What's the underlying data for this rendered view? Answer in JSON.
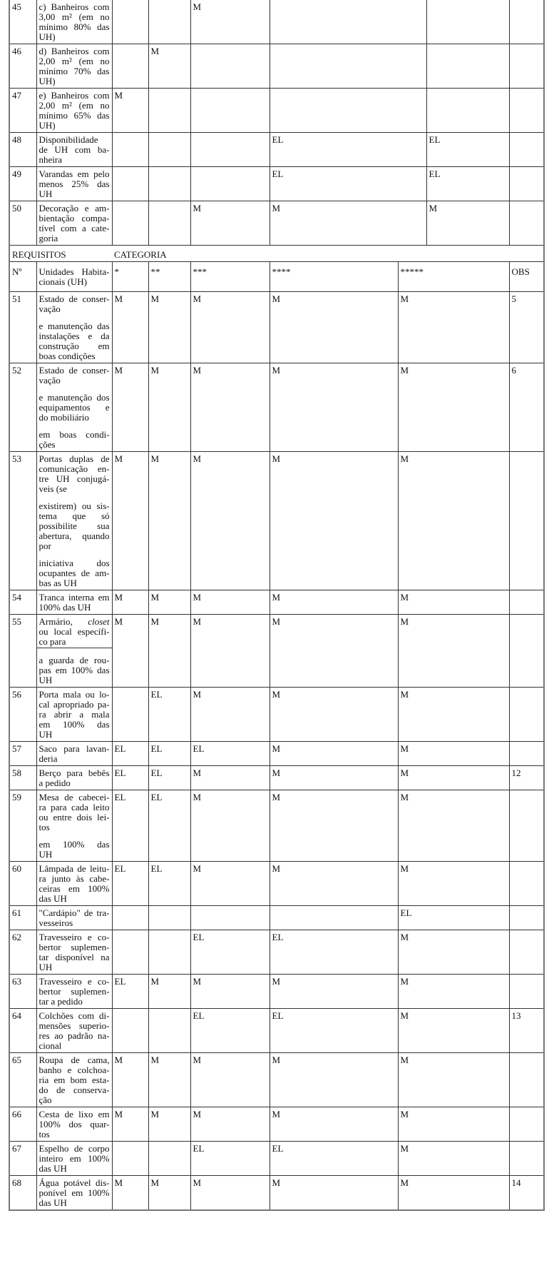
{
  "section1": {
    "rows": [
      {
        "no": "45",
        "desc": [
          [
            "c) Banheiros com",
            "3,00 m² (em no",
            "mínimo 80% das",
            "UH)"
          ]
        ],
        "cats": [
          "",
          "",
          "M",
          "",
          ""
        ],
        "obs": ""
      },
      {
        "no": "46",
        "desc": [
          [
            "d) Banheiros com",
            "2,00 m² (em no",
            "mínimo 70% das",
            "UH)"
          ]
        ],
        "cats": [
          "",
          "M",
          "",
          "",
          ""
        ],
        "obs": ""
      },
      {
        "no": "47",
        "desc": [
          [
            "e) Banheiros com",
            "2,00 m² (em no",
            "mínimo 65% das",
            "UH)"
          ]
        ],
        "cats": [
          "M",
          "",
          "",
          "",
          ""
        ],
        "obs": ""
      },
      {
        "no": "48",
        "desc": [
          [
            "Disponibilidade",
            "de UH com ba-",
            "nheira"
          ]
        ],
        "cats": [
          "",
          "",
          "",
          "EL",
          "EL"
        ],
        "obs": ""
      },
      {
        "no": "49",
        "desc": [
          [
            "Varandas em pelo",
            "menos 25% das",
            "UH"
          ]
        ],
        "cats": [
          "",
          "",
          "",
          "EL",
          "EL"
        ],
        "obs": ""
      },
      {
        "no": "50",
        "desc": [
          [
            "Decoração e am-",
            "bientação compa-",
            "tível com a cate-",
            "goria"
          ]
        ],
        "cats": [
          "",
          "",
          "M",
          "M",
          "M"
        ],
        "obs": ""
      }
    ]
  },
  "section_header": {
    "requisitos": "REQUISITOS",
    "categoria": "CATEGORIA",
    "no": "Nº",
    "desc": [
      "Unidades Habita-",
      "cionais (UH)"
    ],
    "cats": [
      "*",
      "**",
      "***",
      "****",
      "*****"
    ],
    "obs": "OBS"
  },
  "section2": {
    "rows": [
      {
        "no": "51",
        "desc": [
          [
            "Estado de conser-",
            "vação"
          ],
          [
            "e manutenção das",
            "instalações e da",
            "construção em",
            "boas condições"
          ]
        ],
        "cats": [
          "M",
          "M",
          "M",
          "M",
          "M"
        ],
        "obs": "5"
      },
      {
        "no": "52",
        "desc": [
          [
            "Estado de conser-",
            "vação"
          ],
          [
            "e manutenção dos",
            "equipamentos e",
            "do mobiliário"
          ],
          [
            "em boas condi-",
            "ções"
          ]
        ],
        "cats": [
          "M",
          "M",
          "M",
          "M",
          "M"
        ],
        "obs": "6"
      },
      {
        "no": "53",
        "desc": [
          [
            "Portas duplas de",
            "comunicação en-",
            "tre UH conjugá-",
            "veis (se"
          ],
          [
            "existirem) ou sis-",
            "tema que só",
            "possibilite sua",
            "abertura, quando",
            "por"
          ],
          [
            "iniciativa dos",
            "ocupantes de am-",
            "bas as UH"
          ]
        ],
        "cats": [
          "M",
          "M",
          "M",
          "M",
          "M"
        ],
        "obs": ""
      },
      {
        "no": "54",
        "desc": [
          [
            "Tranca interna em",
            "100% das UH"
          ]
        ],
        "cats": [
          "M",
          "M",
          "M",
          "M",
          "M"
        ],
        "obs": ""
      },
      {
        "no": "55",
        "desc": [
          [
            "Armário, closet",
            "ou local específi-",
            "co para"
          ],
          [
            "a guarda de rou-",
            "pas em 100% das",
            "UH"
          ]
        ],
        "italic_word": "closet",
        "split": true,
        "cats": [
          "M",
          "M",
          "M",
          "M",
          "M"
        ],
        "obs": ""
      },
      {
        "no": "56",
        "desc": [
          [
            "Porta mala ou lo-",
            "cal apropriado pa-",
            "ra abrir a mala",
            "em 100% das",
            "UH"
          ]
        ],
        "cats": [
          "",
          "EL",
          "M",
          "M",
          "M"
        ],
        "obs": ""
      },
      {
        "no": "57",
        "desc": [
          [
            "Saco para lavan-",
            "deria"
          ]
        ],
        "cats": [
          "EL",
          "EL",
          "EL",
          "M",
          "M"
        ],
        "obs": ""
      },
      {
        "no": "58",
        "desc": [
          [
            "Berço para bebês",
            "a pedido"
          ]
        ],
        "cats": [
          "EL",
          "EL",
          "M",
          "M",
          "M"
        ],
        "obs": "12"
      },
      {
        "no": "59",
        "desc": [
          [
            "Mesa de cabecei-",
            "ra para cada leito",
            "ou entre dois lei-",
            "tos"
          ],
          [
            "em 100% das",
            "UH"
          ]
        ],
        "cats": [
          "EL",
          "EL",
          "M",
          "M",
          "M"
        ],
        "obs": ""
      },
      {
        "no": "60",
        "desc": [
          [
            "Lâmpada de leitu-",
            "ra junto às cabe-",
            "ceiras em 100%",
            "das UH"
          ]
        ],
        "cats": [
          "EL",
          "EL",
          "M",
          "M",
          "M"
        ],
        "obs": ""
      },
      {
        "no": "61",
        "desc": [
          [
            "\"Cardápio\" de tra-",
            "vesseiros"
          ]
        ],
        "cats": [
          "",
          "",
          "",
          "",
          "EL"
        ],
        "obs": ""
      },
      {
        "no": "62",
        "desc": [
          [
            "Travesseiro e co-",
            "bertor suplemen-",
            "tar disponível na",
            "UH"
          ]
        ],
        "cats": [
          "",
          "",
          "EL",
          "EL",
          "M"
        ],
        "obs": ""
      },
      {
        "no": "63",
        "desc": [
          [
            "Travesseiro e co-",
            "bertor suplemen-",
            "tar a pedido"
          ]
        ],
        "cats": [
          "EL",
          "M",
          "M",
          "M",
          "M"
        ],
        "obs": ""
      },
      {
        "no": "64",
        "desc": [
          [
            "Colchões com di-",
            "mensões superio-",
            "res ao padrão na-",
            "cional"
          ]
        ],
        "cats": [
          "",
          "",
          "EL",
          "EL",
          "M"
        ],
        "obs": "13"
      },
      {
        "no": "65",
        "desc": [
          [
            "Roupa de cama,",
            "banho e colchoa-",
            "ria em bom esta-",
            "do de conserva-",
            "ção"
          ]
        ],
        "cats": [
          "M",
          "M",
          "M",
          "M",
          "M"
        ],
        "obs": ""
      },
      {
        "no": "66",
        "desc": [
          [
            "Cesta de lixo em",
            "100% dos quar-",
            "tos"
          ]
        ],
        "cats": [
          "M",
          "M",
          "M",
          "M",
          "M"
        ],
        "obs": ""
      },
      {
        "no": "67",
        "desc": [
          [
            "Espelho de corpo",
            "inteiro em 100%",
            "das UH"
          ]
        ],
        "cats": [
          "",
          "",
          "EL",
          "EL",
          "M"
        ],
        "obs": ""
      },
      {
        "no": "68",
        "desc": [
          [
            "Água potável dis-",
            "ponível em 100%",
            "das UH"
          ]
        ],
        "cats": [
          "M",
          "M",
          "M",
          "M",
          "M"
        ],
        "obs": "14"
      }
    ]
  }
}
